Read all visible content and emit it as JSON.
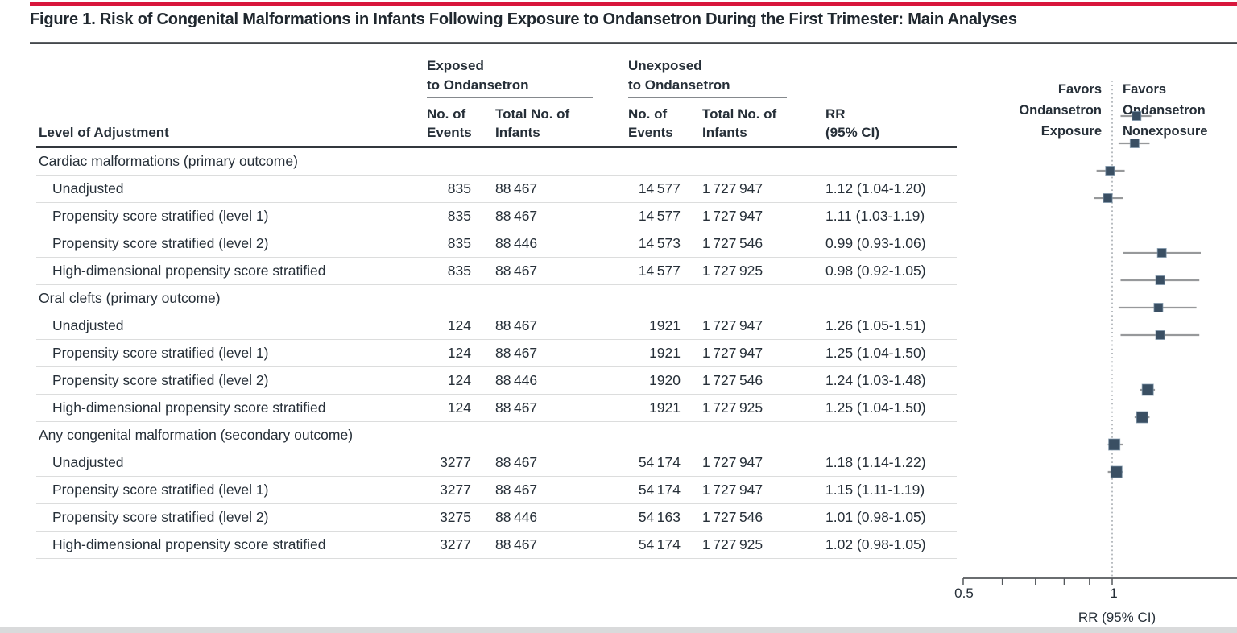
{
  "figure": {
    "title": "Figure 1. Risk of Congenital Malformations in Infants Following Exposure to Ondansetron During the First Trimester: Main Analyses"
  },
  "colors": {
    "accent_red": "#d8163c",
    "text_dark": "#262f38",
    "marker_fill": "#3a4f63",
    "ci_line": "#97999b",
    "axis": "#54585c",
    "row_rule": "#dcdddd"
  },
  "table": {
    "header": {
      "level_of_adjustment": "Level of Adjustment",
      "exposed_l1": "Exposed",
      "exposed_l2": "to Ondansetron",
      "unexposed_l1": "Unexposed",
      "unexposed_l2": "to Ondansetron",
      "events_l1": "No. of",
      "events_l2": "Events",
      "total_l1": "Total No. of",
      "total_l2": "Infants",
      "rr_l1": "RR",
      "rr_l2": "(95% CI)"
    },
    "groups": [
      {
        "label": "Cardiac malformations (primary outcome)",
        "rows": [
          {
            "label": "Unadjusted",
            "exp_events": "835",
            "exp_total": "88 467",
            "unexp_events": "14 577",
            "unexp_total": "1 727 947",
            "rr_text": "1.12 (1.04-1.20)"
          },
          {
            "label": "Propensity score stratified (level 1)",
            "exp_events": "835",
            "exp_total": "88 467",
            "unexp_events": "14 577",
            "unexp_total": "1 727 947",
            "rr_text": "1.11 (1.03-1.19)"
          },
          {
            "label": "Propensity score stratified (level 2)",
            "exp_events": "835",
            "exp_total": "88 446",
            "unexp_events": "14 573",
            "unexp_total": "1 727 546",
            "rr_text": "0.99 (0.93-1.06)"
          },
          {
            "label": "High-dimensional propensity score stratified",
            "exp_events": "835",
            "exp_total": "88 467",
            "unexp_events": "14 577",
            "unexp_total": "1 727 925",
            "rr_text": "0.98 (0.92-1.05)"
          }
        ]
      },
      {
        "label": "Oral clefts (primary outcome)",
        "rows": [
          {
            "label": "Unadjusted",
            "exp_events": "124",
            "exp_total": "88 467",
            "unexp_events": "1921",
            "unexp_total": "1 727 947",
            "rr_text": "1.26 (1.05-1.51)"
          },
          {
            "label": "Propensity score stratified (level 1)",
            "exp_events": "124",
            "exp_total": "88 467",
            "unexp_events": "1921",
            "unexp_total": "1 727 947",
            "rr_text": "1.25 (1.04-1.50)"
          },
          {
            "label": "Propensity score stratified (level 2)",
            "exp_events": "124",
            "exp_total": "88 446",
            "unexp_events": "1920",
            "unexp_total": "1 727 546",
            "rr_text": "1.24 (1.03-1.48)"
          },
          {
            "label": "High-dimensional propensity score stratified",
            "exp_events": "124",
            "exp_total": "88 467",
            "unexp_events": "1921",
            "unexp_total": "1 727 925",
            "rr_text": "1.25 (1.04-1.50)"
          }
        ]
      },
      {
        "label": "Any congenital malformation (secondary outcome)",
        "rows": [
          {
            "label": "Unadjusted",
            "exp_events": "3277",
            "exp_total": "88 467",
            "unexp_events": "54 174",
            "unexp_total": "1 727 947",
            "rr_text": "1.18 (1.14-1.22)"
          },
          {
            "label": "Propensity score stratified (level 1)",
            "exp_events": "3277",
            "exp_total": "88 467",
            "unexp_events": "54 174",
            "unexp_total": "1 727 947",
            "rr_text": "1.15 (1.11-1.19)"
          },
          {
            "label": "Propensity score stratified (level 2)",
            "exp_events": "3275",
            "exp_total": "88 446",
            "unexp_events": "54 163",
            "unexp_total": "1 727 546",
            "rr_text": "1.01 (0.98-1.05)"
          },
          {
            "label": "High-dimensional propensity score stratified",
            "exp_events": "3277",
            "exp_total": "88 467",
            "unexp_events": "54 174",
            "unexp_total": "1 727 925",
            "rr_text": "1.02 (0.98-1.05)"
          }
        ]
      }
    ]
  },
  "chart_data": {
    "type": "scatter",
    "subtype": "forest-plot",
    "xlabel": "RR (95% CI)",
    "xscale": "log",
    "xlim": [
      0.5,
      1.8
    ],
    "ticks": [
      0.5,
      0.6,
      0.7,
      0.8,
      0.9,
      1
    ],
    "tick_labels": [
      "0.5",
      "1"
    ],
    "reference_line": 1,
    "grid": false,
    "annotations": {
      "favors_exposure": [
        "Favors",
        "Ondansetron",
        "Exposure"
      ],
      "favors_nonexposure": [
        "Favors",
        "Ondansetron",
        "Nonexposure"
      ]
    },
    "groups": [
      {
        "label": "Cardiac malformations (primary outcome)",
        "marker_size": 11,
        "points": [
          {
            "label": "Unadjusted",
            "rr": 1.12,
            "lo": 1.04,
            "hi": 1.2
          },
          {
            "label": "Propensity score stratified (level 1)",
            "rr": 1.11,
            "lo": 1.03,
            "hi": 1.19
          },
          {
            "label": "Propensity score stratified (level 2)",
            "rr": 0.99,
            "lo": 0.93,
            "hi": 1.06
          },
          {
            "label": "High-dimensional propensity score stratified",
            "rr": 0.98,
            "lo": 0.92,
            "hi": 1.05
          }
        ]
      },
      {
        "label": "Oral clefts (primary outcome)",
        "marker_size": 11,
        "points": [
          {
            "label": "Unadjusted",
            "rr": 1.26,
            "lo": 1.05,
            "hi": 1.51
          },
          {
            "label": "Propensity score stratified (level 1)",
            "rr": 1.25,
            "lo": 1.04,
            "hi": 1.5
          },
          {
            "label": "Propensity score stratified (level 2)",
            "rr": 1.24,
            "lo": 1.03,
            "hi": 1.48
          },
          {
            "label": "High-dimensional propensity score stratified",
            "rr": 1.25,
            "lo": 1.04,
            "hi": 1.5
          }
        ]
      },
      {
        "label": "Any congenital malformation (secondary outcome)",
        "marker_size": 14,
        "points": [
          {
            "label": "Unadjusted",
            "rr": 1.18,
            "lo": 1.14,
            "hi": 1.22
          },
          {
            "label": "Propensity score stratified (level 1)",
            "rr": 1.15,
            "lo": 1.11,
            "hi": 1.19
          },
          {
            "label": "Propensity score stratified (level 2)",
            "rr": 1.01,
            "lo": 0.98,
            "hi": 1.05
          },
          {
            "label": "High-dimensional propensity score stratified",
            "rr": 1.02,
            "lo": 0.98,
            "hi": 1.05
          }
        ]
      }
    ]
  }
}
